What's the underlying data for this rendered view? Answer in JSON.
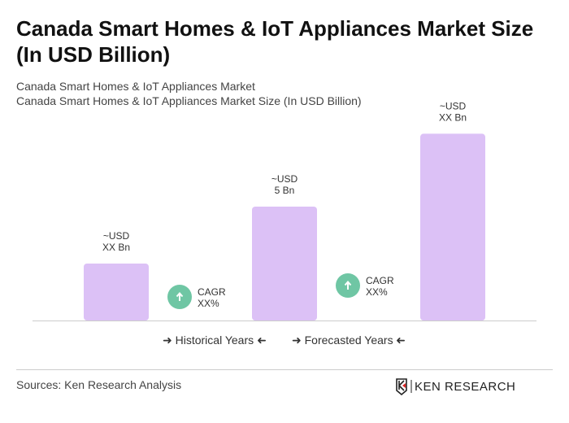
{
  "title": "Canada Smart Homes & IoT Appliances Market Size (In USD Billion)",
  "subtitle1": "Canada Smart Homes & IoT Appliances Market",
  "subtitle2": "Canada Smart Homes & IoT Appliances Market Size (In USD Billion)",
  "chart_data": {
    "type": "bar",
    "categories": [
      "",
      "",
      ""
    ],
    "values": [
      2.5,
      5,
      8.2
    ],
    "data_labels": [
      [
        "~USD",
        "XX Bn"
      ],
      [
        "~USD",
        "5 Bn"
      ],
      [
        "~USD",
        "XX Bn"
      ]
    ],
    "bar_color": "#dcc1f6",
    "cagr": [
      {
        "line1": "CAGR",
        "line2": "XX%"
      },
      {
        "line1": "CAGR",
        "line2": "XX%"
      }
    ],
    "cagr_color": "#6fc6a4",
    "grid": false
  },
  "legend": {
    "historical": "Historical Years",
    "forecasted": "Forecasted Years"
  },
  "source": "Sources: Ken Research Analysis",
  "logo_text": "KEN RESEARCH"
}
